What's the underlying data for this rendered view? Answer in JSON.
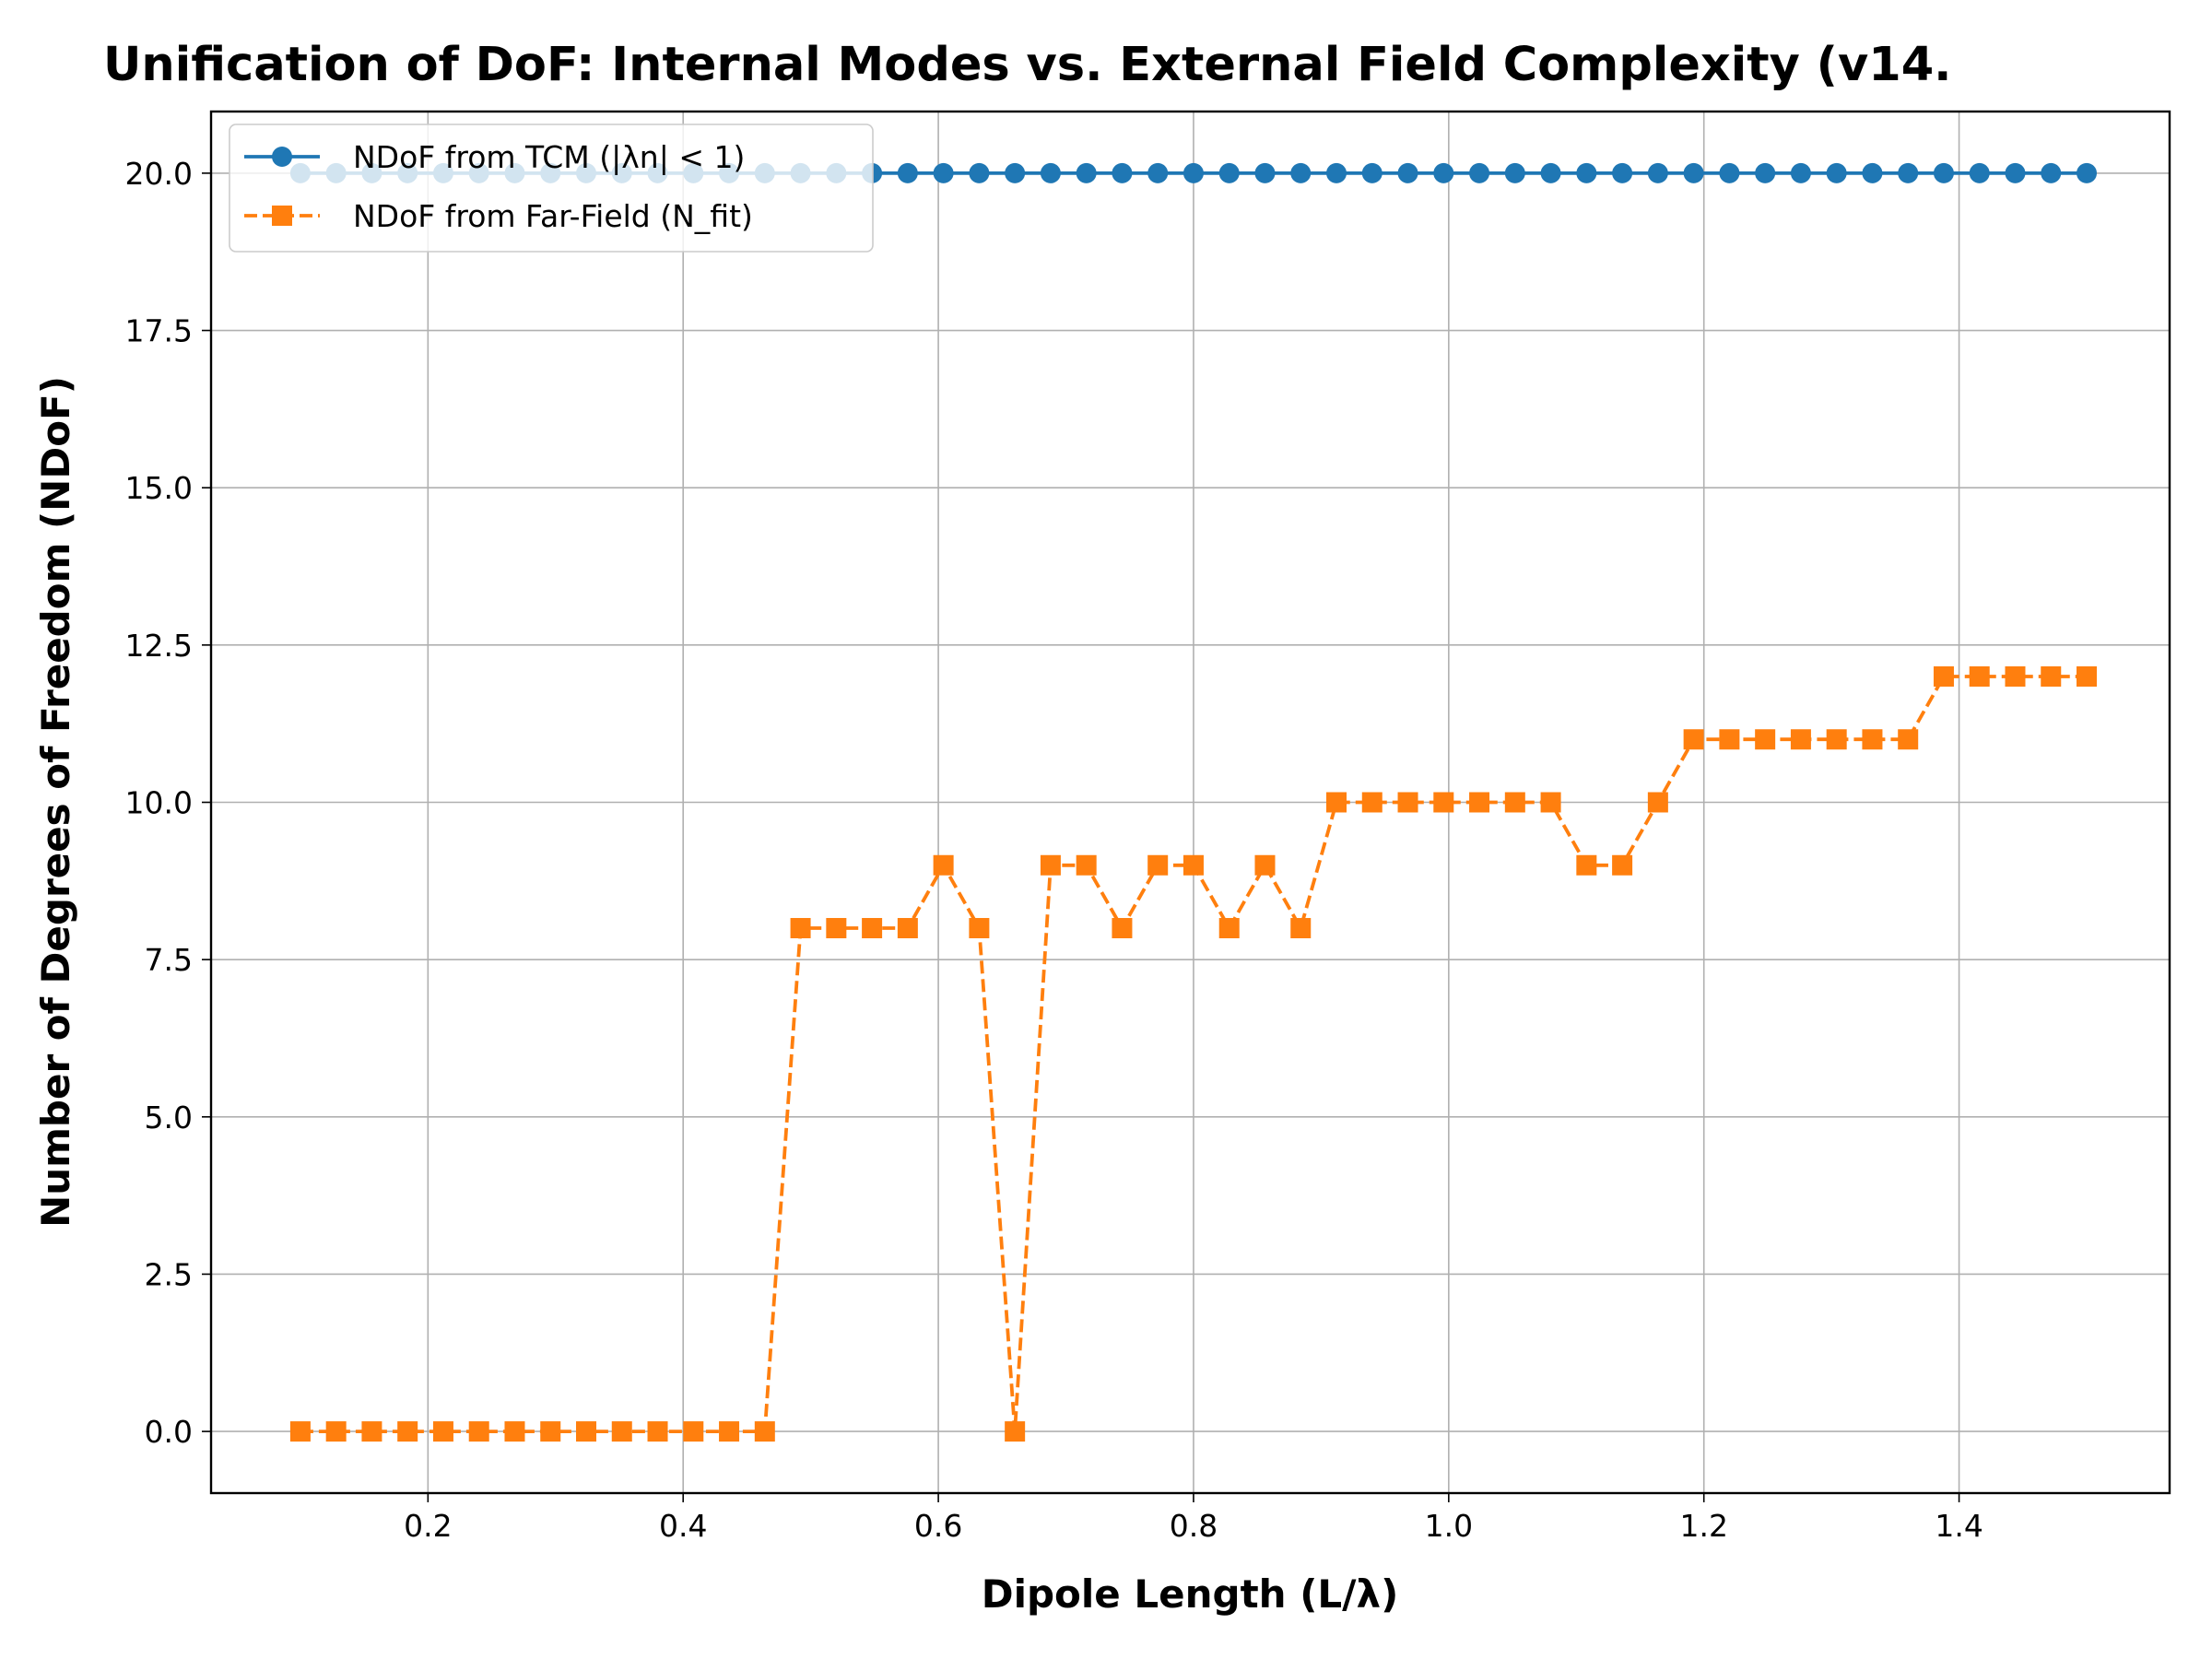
{
  "chart_data": {
    "type": "line",
    "title": "Unification of DoF: Internal Modes vs. External Field Complexity (v14.",
    "xlabel": "Dipole Length (L/λ)",
    "ylabel": "Number of Degrees of Freedom (NDoF)",
    "xlim": [
      0.03,
      1.565
    ],
    "ylim": [
      -0.98,
      20.98
    ],
    "xticks": [
      0.2,
      0.4,
      0.6,
      0.8,
      1.0,
      1.2,
      1.4
    ],
    "xtick_labels": [
      "0.2",
      "0.4",
      "0.6",
      "0.8",
      "1.0",
      "1.2",
      "1.4"
    ],
    "yticks": [
      0,
      2.5,
      5,
      7.5,
      10,
      12.5,
      15,
      17.5,
      20
    ],
    "ytick_labels": [
      "0.0",
      "2.5",
      "5.0",
      "7.5",
      "10.0",
      "12.5",
      "15.0",
      "17.5",
      "20.0"
    ],
    "grid": true,
    "legend_position": "top-left",
    "x": [
      0.1,
      0.128,
      0.156,
      0.184,
      0.212,
      0.24,
      0.268,
      0.296,
      0.324,
      0.352,
      0.38,
      0.408,
      0.436,
      0.464,
      0.492,
      0.52,
      0.548,
      0.576,
      0.604,
      0.632,
      0.66,
      0.688,
      0.716,
      0.744,
      0.772,
      0.8,
      0.828,
      0.856,
      0.884,
      0.912,
      0.94,
      0.968,
      0.996,
      1.024,
      1.052,
      1.08,
      1.108,
      1.136,
      1.164,
      1.192,
      1.22,
      1.248,
      1.276,
      1.304,
      1.332,
      1.36,
      1.388,
      1.416,
      1.444,
      1.472,
      1.5
    ],
    "series": [
      {
        "name": "NDoF from TCM (|λn| < 1)",
        "color": "#1f77b4",
        "linestyle": "solid",
        "marker": "circle",
        "values": [
          20,
          20,
          20,
          20,
          20,
          20,
          20,
          20,
          20,
          20,
          20,
          20,
          20,
          20,
          20,
          20,
          20,
          20,
          20,
          20,
          20,
          20,
          20,
          20,
          20,
          20,
          20,
          20,
          20,
          20,
          20,
          20,
          20,
          20,
          20,
          20,
          20,
          20,
          20,
          20,
          20,
          20,
          20,
          20,
          20,
          20,
          20,
          20,
          20,
          20,
          20
        ]
      },
      {
        "name": "NDoF from Far-Field (N_fit)",
        "color": "#ff7f0e",
        "linestyle": "dashed",
        "marker": "square",
        "values": [
          0,
          0,
          0,
          0,
          0,
          0,
          0,
          0,
          0,
          0,
          0,
          0,
          0,
          0,
          8,
          8,
          8,
          8,
          9,
          8,
          0,
          9,
          9,
          8,
          9,
          9,
          8,
          9,
          8,
          10,
          10,
          10,
          10,
          10,
          10,
          10,
          9,
          9,
          10,
          11,
          11,
          11,
          11,
          11,
          11,
          11,
          12,
          12,
          12,
          12,
          12
        ]
      }
    ]
  }
}
